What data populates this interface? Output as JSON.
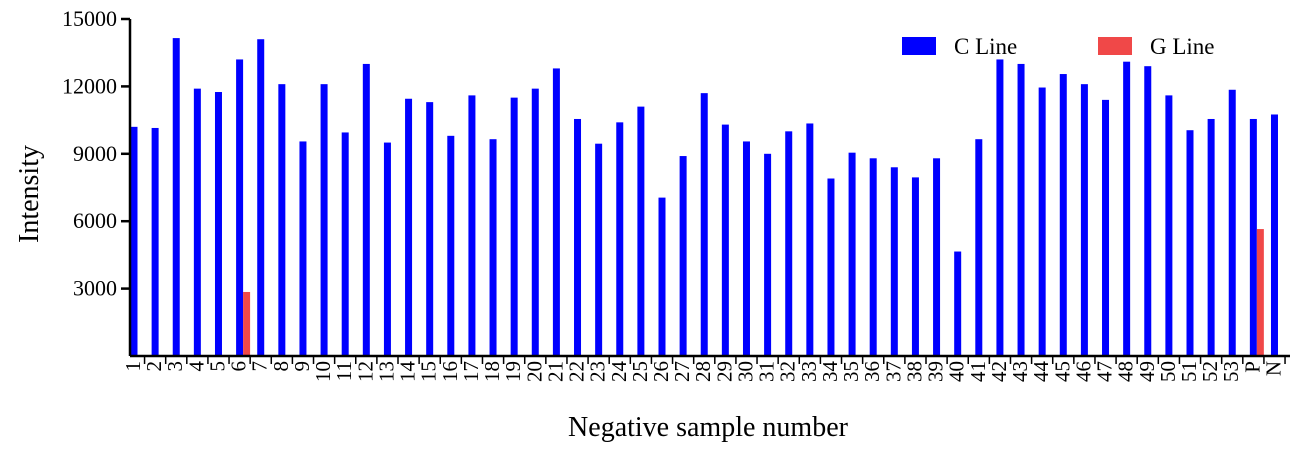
{
  "chart_data": {
    "type": "bar",
    "title": "",
    "xlabel": "Negative sample number",
    "ylabel": "Intensity",
    "ylim": [
      0,
      15000
    ],
    "yticks": [
      3000,
      6000,
      9000,
      12000,
      15000
    ],
    "grid": false,
    "legend_position": "top-right",
    "categories": [
      "1",
      "2",
      "3",
      "4",
      "5",
      "6",
      "7",
      "8",
      "9",
      "10",
      "11",
      "12",
      "13",
      "14",
      "15",
      "16",
      "17",
      "18",
      "19",
      "20",
      "21",
      "22",
      "23",
      "24",
      "25",
      "26",
      "27",
      "28",
      "29",
      "30",
      "31",
      "32",
      "33",
      "34",
      "35",
      "36",
      "37",
      "38",
      "39",
      "40",
      "41",
      "42",
      "43",
      "44",
      "45",
      "46",
      "47",
      "48",
      "49",
      "50",
      "51",
      "52",
      "53",
      "P",
      "N"
    ],
    "series": [
      {
        "name": "C Line",
        "color": "#0000ff",
        "values": [
          10200,
          10150,
          14150,
          11900,
          11750,
          13200,
          14100,
          12100,
          9550,
          12100,
          9950,
          13000,
          9500,
          11450,
          11300,
          9800,
          11600,
          9650,
          11500,
          11900,
          12800,
          10550,
          9450,
          10400,
          11100,
          7050,
          8900,
          11700,
          10300,
          9550,
          9000,
          10000,
          10350,
          7900,
          9050,
          8800,
          8400,
          7950,
          8800,
          4650,
          9650,
          13200,
          13000,
          11950,
          12550,
          12100,
          11400,
          13100,
          12900,
          11600,
          10050,
          10550,
          11850,
          10550,
          10750
        ]
      },
      {
        "name": "G Line",
        "color": "#f04848",
        "values": [
          0,
          0,
          0,
          0,
          0,
          2850,
          0,
          0,
          0,
          0,
          0,
          0,
          0,
          0,
          0,
          0,
          0,
          0,
          0,
          0,
          0,
          0,
          0,
          0,
          0,
          0,
          0,
          0,
          0,
          0,
          0,
          0,
          0,
          0,
          0,
          0,
          0,
          0,
          0,
          0,
          0,
          0,
          0,
          0,
          0,
          0,
          0,
          0,
          0,
          0,
          0,
          0,
          0,
          5650,
          0
        ]
      }
    ]
  }
}
